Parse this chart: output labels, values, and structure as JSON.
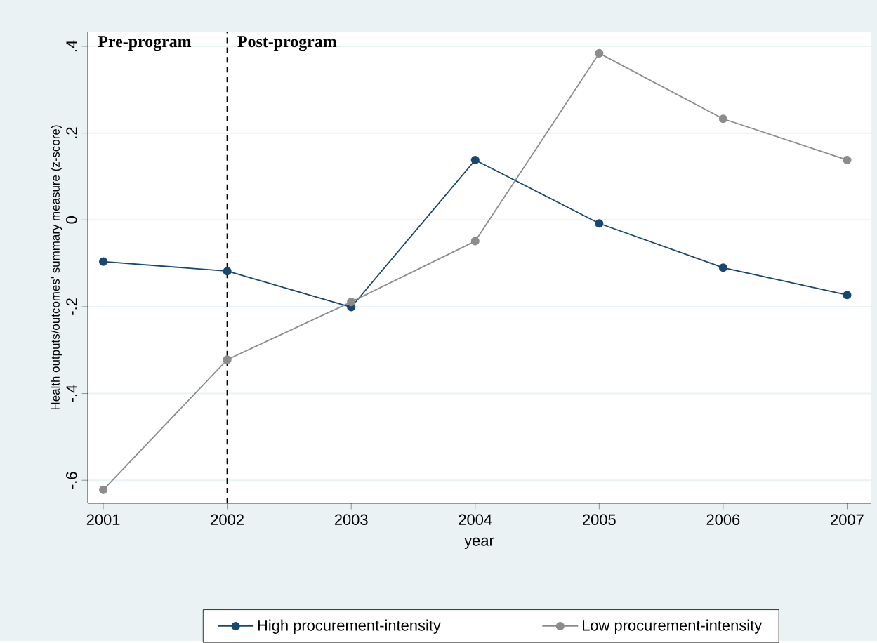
{
  "chart_data": {
    "type": "line",
    "x": [
      2001,
      2002,
      2003,
      2004,
      2005,
      2006,
      2007
    ],
    "series": [
      {
        "name": "High procurement-intensity",
        "color": "#1a476f",
        "values": [
          -0.096,
          -0.118,
          -0.201,
          0.138,
          -0.008,
          -0.11,
          -0.173
        ]
      },
      {
        "name": "Low procurement-intensity",
        "color": "#8c8c8c",
        "values": [
          -0.622,
          -0.322,
          -0.189,
          -0.049,
          0.384,
          0.233,
          0.138
        ]
      }
    ],
    "xlabel": "year",
    "ylabel": "Health outputs/outcomes' summary measure (z-score)",
    "xlim": [
      2000.875,
      2007.19
    ],
    "ylim": [
      -0.653,
      0.434
    ],
    "xticks": [
      2001,
      2002,
      2003,
      2004,
      2005,
      2006,
      2007
    ],
    "yticks": [
      {
        "value": -0.6,
        "label": "-.6"
      },
      {
        "value": -0.4,
        "label": "-.4"
      },
      {
        "value": -0.2,
        "label": "-.2"
      },
      {
        "value": 0,
        "label": "0"
      },
      {
        "value": 0.2,
        "label": ".2"
      },
      {
        "value": 0.4,
        "label": ".4"
      }
    ],
    "ref_lines": [
      {
        "axis": "x",
        "value": 2002,
        "color": "#000000",
        "line_style": "dashed"
      }
    ],
    "annotations": [
      "Pre-program",
      "Post-program"
    ],
    "grid": "y",
    "legend": "bottom",
    "marker": "circle",
    "line_style": "solid"
  }
}
